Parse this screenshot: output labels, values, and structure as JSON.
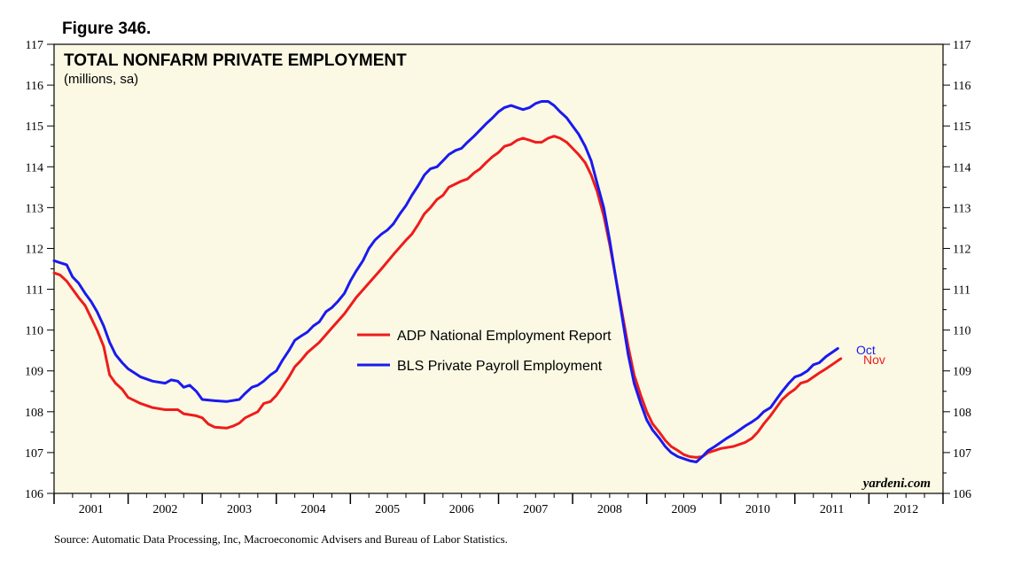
{
  "figure_label": "Figure 346.",
  "source": "Source: Automatic Data Processing, Inc, Macroeconomic Advisers and Bureau of Labor Statistics.",
  "watermark": "yardeni.com",
  "colors": {
    "background": "#fbf9e4",
    "adp": "#ee1c1c",
    "bls": "#1a1aee"
  },
  "chart_data": {
    "type": "line",
    "title": "TOTAL NONFARM PRIVATE EMPLOYMENT",
    "subtitle": "(millions, sa)",
    "ylim": [
      106,
      117
    ],
    "yticks": [
      106,
      107,
      108,
      109,
      110,
      111,
      112,
      113,
      114,
      115,
      116,
      117
    ],
    "xlim": [
      2001,
      2013
    ],
    "xticks": [
      "2001",
      "2002",
      "2003",
      "2004",
      "2005",
      "2006",
      "2007",
      "2008",
      "2009",
      "2010",
      "2011",
      "2012"
    ],
    "grid": false,
    "legend_placement": "center",
    "series": [
      {
        "name": "ADP National Employment Report",
        "color": "#ee1c1c",
        "end_label": "Nov",
        "points": [
          [
            2001.0,
            111.4
          ],
          [
            2001.08,
            111.35
          ],
          [
            2001.17,
            111.2
          ],
          [
            2001.25,
            111.0
          ],
          [
            2001.33,
            110.8
          ],
          [
            2001.42,
            110.6
          ],
          [
            2001.5,
            110.3
          ],
          [
            2001.58,
            110.0
          ],
          [
            2001.67,
            109.6
          ],
          [
            2001.75,
            108.9
          ],
          [
            2001.83,
            108.7
          ],
          [
            2001.92,
            108.55
          ],
          [
            2002.0,
            108.35
          ],
          [
            2002.17,
            108.2
          ],
          [
            2002.33,
            108.1
          ],
          [
            2002.5,
            108.05
          ],
          [
            2002.67,
            108.05
          ],
          [
            2002.75,
            107.95
          ],
          [
            2002.92,
            107.9
          ],
          [
            2003.0,
            107.85
          ],
          [
            2003.08,
            107.7
          ],
          [
            2003.17,
            107.62
          ],
          [
            2003.33,
            107.6
          ],
          [
            2003.42,
            107.65
          ],
          [
            2003.5,
            107.72
          ],
          [
            2003.58,
            107.85
          ],
          [
            2003.75,
            108.0
          ],
          [
            2003.83,
            108.2
          ],
          [
            2003.92,
            108.25
          ],
          [
            2004.0,
            108.4
          ],
          [
            2004.08,
            108.6
          ],
          [
            2004.17,
            108.85
          ],
          [
            2004.25,
            109.1
          ],
          [
            2004.33,
            109.25
          ],
          [
            2004.42,
            109.45
          ],
          [
            2004.58,
            109.7
          ],
          [
            2004.75,
            110.05
          ],
          [
            2004.92,
            110.4
          ],
          [
            2005.08,
            110.8
          ],
          [
            2005.25,
            111.15
          ],
          [
            2005.42,
            111.5
          ],
          [
            2005.58,
            111.85
          ],
          [
            2005.75,
            112.2
          ],
          [
            2005.83,
            112.35
          ],
          [
            2005.92,
            112.6
          ],
          [
            2006.0,
            112.85
          ],
          [
            2006.08,
            113.0
          ],
          [
            2006.17,
            113.2
          ],
          [
            2006.25,
            113.3
          ],
          [
            2006.33,
            113.5
          ],
          [
            2006.5,
            113.65
          ],
          [
            2006.58,
            113.7
          ],
          [
            2006.67,
            113.85
          ],
          [
            2006.75,
            113.95
          ],
          [
            2006.83,
            114.1
          ],
          [
            2006.92,
            114.25
          ],
          [
            2007.0,
            114.35
          ],
          [
            2007.08,
            114.5
          ],
          [
            2007.17,
            114.55
          ],
          [
            2007.25,
            114.65
          ],
          [
            2007.33,
            114.7
          ],
          [
            2007.42,
            114.65
          ],
          [
            2007.5,
            114.6
          ],
          [
            2007.58,
            114.6
          ],
          [
            2007.67,
            114.7
          ],
          [
            2007.75,
            114.75
          ],
          [
            2007.83,
            114.7
          ],
          [
            2007.92,
            114.6
          ],
          [
            2008.0,
            114.45
          ],
          [
            2008.08,
            114.3
          ],
          [
            2008.17,
            114.1
          ],
          [
            2008.25,
            113.8
          ],
          [
            2008.33,
            113.4
          ],
          [
            2008.42,
            112.8
          ],
          [
            2008.5,
            112.1
          ],
          [
            2008.58,
            111.3
          ],
          [
            2008.67,
            110.4
          ],
          [
            2008.75,
            109.6
          ],
          [
            2008.83,
            108.9
          ],
          [
            2008.92,
            108.4
          ],
          [
            2009.0,
            108.0
          ],
          [
            2009.08,
            107.7
          ],
          [
            2009.17,
            107.5
          ],
          [
            2009.25,
            107.3
          ],
          [
            2009.33,
            107.15
          ],
          [
            2009.42,
            107.05
          ],
          [
            2009.5,
            106.95
          ],
          [
            2009.58,
            106.9
          ],
          [
            2009.67,
            106.88
          ],
          [
            2009.75,
            106.9
          ],
          [
            2009.83,
            107.0
          ],
          [
            2009.92,
            107.05
          ],
          [
            2010.0,
            107.1
          ],
          [
            2010.17,
            107.15
          ],
          [
            2010.33,
            107.25
          ],
          [
            2010.42,
            107.35
          ],
          [
            2010.5,
            107.5
          ],
          [
            2010.58,
            107.7
          ],
          [
            2010.67,
            107.9
          ],
          [
            2010.75,
            108.1
          ],
          [
            2010.83,
            108.3
          ],
          [
            2010.92,
            108.45
          ],
          [
            2011.0,
            108.55
          ],
          [
            2011.08,
            108.7
          ],
          [
            2011.17,
            108.75
          ],
          [
            2011.25,
            108.85
          ],
          [
            2011.33,
            108.95
          ],
          [
            2011.42,
            109.05
          ],
          [
            2011.5,
            109.15
          ],
          [
            2011.58,
            109.25
          ],
          [
            2011.62,
            109.3
          ]
        ]
      },
      {
        "name": "BLS Private Payroll Employment",
        "color": "#1a1aee",
        "end_label": "Oct",
        "points": [
          [
            2001.0,
            111.7
          ],
          [
            2001.08,
            111.65
          ],
          [
            2001.17,
            111.6
          ],
          [
            2001.25,
            111.3
          ],
          [
            2001.33,
            111.15
          ],
          [
            2001.42,
            110.9
          ],
          [
            2001.5,
            110.7
          ],
          [
            2001.58,
            110.45
          ],
          [
            2001.67,
            110.1
          ],
          [
            2001.75,
            109.7
          ],
          [
            2001.83,
            109.4
          ],
          [
            2001.92,
            109.2
          ],
          [
            2002.0,
            109.05
          ],
          [
            2002.17,
            108.85
          ],
          [
            2002.33,
            108.75
          ],
          [
            2002.5,
            108.7
          ],
          [
            2002.58,
            108.78
          ],
          [
            2002.67,
            108.75
          ],
          [
            2002.75,
            108.6
          ],
          [
            2002.83,
            108.65
          ],
          [
            2002.92,
            108.5
          ],
          [
            2003.0,
            108.3
          ],
          [
            2003.17,
            108.27
          ],
          [
            2003.33,
            108.25
          ],
          [
            2003.5,
            108.3
          ],
          [
            2003.58,
            108.45
          ],
          [
            2003.67,
            108.6
          ],
          [
            2003.75,
            108.65
          ],
          [
            2003.83,
            108.75
          ],
          [
            2003.92,
            108.9
          ],
          [
            2004.0,
            109.0
          ],
          [
            2004.08,
            109.25
          ],
          [
            2004.17,
            109.5
          ],
          [
            2004.25,
            109.75
          ],
          [
            2004.33,
            109.85
          ],
          [
            2004.42,
            109.95
          ],
          [
            2004.5,
            110.1
          ],
          [
            2004.58,
            110.2
          ],
          [
            2004.67,
            110.45
          ],
          [
            2004.75,
            110.55
          ],
          [
            2004.83,
            110.7
          ],
          [
            2004.92,
            110.9
          ],
          [
            2005.0,
            111.2
          ],
          [
            2005.08,
            111.45
          ],
          [
            2005.17,
            111.7
          ],
          [
            2005.25,
            112.0
          ],
          [
            2005.33,
            112.2
          ],
          [
            2005.42,
            112.35
          ],
          [
            2005.5,
            112.45
          ],
          [
            2005.58,
            112.6
          ],
          [
            2005.67,
            112.85
          ],
          [
            2005.75,
            113.05
          ],
          [
            2005.83,
            113.3
          ],
          [
            2005.92,
            113.55
          ],
          [
            2006.0,
            113.8
          ],
          [
            2006.08,
            113.95
          ],
          [
            2006.17,
            114.0
          ],
          [
            2006.25,
            114.15
          ],
          [
            2006.33,
            114.3
          ],
          [
            2006.42,
            114.4
          ],
          [
            2006.5,
            114.45
          ],
          [
            2006.58,
            114.6
          ],
          [
            2006.67,
            114.75
          ],
          [
            2006.75,
            114.9
          ],
          [
            2006.83,
            115.05
          ],
          [
            2006.92,
            115.2
          ],
          [
            2007.0,
            115.35
          ],
          [
            2007.08,
            115.45
          ],
          [
            2007.17,
            115.5
          ],
          [
            2007.25,
            115.45
          ],
          [
            2007.33,
            115.4
          ],
          [
            2007.42,
            115.45
          ],
          [
            2007.5,
            115.55
          ],
          [
            2007.58,
            115.6
          ],
          [
            2007.67,
            115.6
          ],
          [
            2007.75,
            115.5
          ],
          [
            2007.83,
            115.35
          ],
          [
            2007.92,
            115.2
          ],
          [
            2008.0,
            115.0
          ],
          [
            2008.08,
            114.8
          ],
          [
            2008.17,
            114.5
          ],
          [
            2008.25,
            114.15
          ],
          [
            2008.33,
            113.6
          ],
          [
            2008.42,
            113.0
          ],
          [
            2008.5,
            112.2
          ],
          [
            2008.58,
            111.3
          ],
          [
            2008.67,
            110.3
          ],
          [
            2008.75,
            109.4
          ],
          [
            2008.83,
            108.7
          ],
          [
            2008.92,
            108.2
          ],
          [
            2009.0,
            107.8
          ],
          [
            2009.08,
            107.55
          ],
          [
            2009.17,
            107.35
          ],
          [
            2009.25,
            107.15
          ],
          [
            2009.33,
            107.0
          ],
          [
            2009.42,
            106.9
          ],
          [
            2009.5,
            106.85
          ],
          [
            2009.58,
            106.8
          ],
          [
            2009.67,
            106.77
          ],
          [
            2009.75,
            106.9
          ],
          [
            2009.83,
            107.05
          ],
          [
            2009.92,
            107.15
          ],
          [
            2010.0,
            107.25
          ],
          [
            2010.08,
            107.35
          ],
          [
            2010.17,
            107.45
          ],
          [
            2010.25,
            107.55
          ],
          [
            2010.33,
            107.65
          ],
          [
            2010.42,
            107.75
          ],
          [
            2010.5,
            107.85
          ],
          [
            2010.58,
            108.0
          ],
          [
            2010.67,
            108.1
          ],
          [
            2010.75,
            108.3
          ],
          [
            2010.83,
            108.5
          ],
          [
            2010.92,
            108.7
          ],
          [
            2011.0,
            108.85
          ],
          [
            2011.08,
            108.9
          ],
          [
            2011.17,
            109.0
          ],
          [
            2011.25,
            109.15
          ],
          [
            2011.33,
            109.2
          ],
          [
            2011.42,
            109.35
          ],
          [
            2011.5,
            109.45
          ],
          [
            2011.58,
            109.55
          ]
        ]
      }
    ]
  }
}
